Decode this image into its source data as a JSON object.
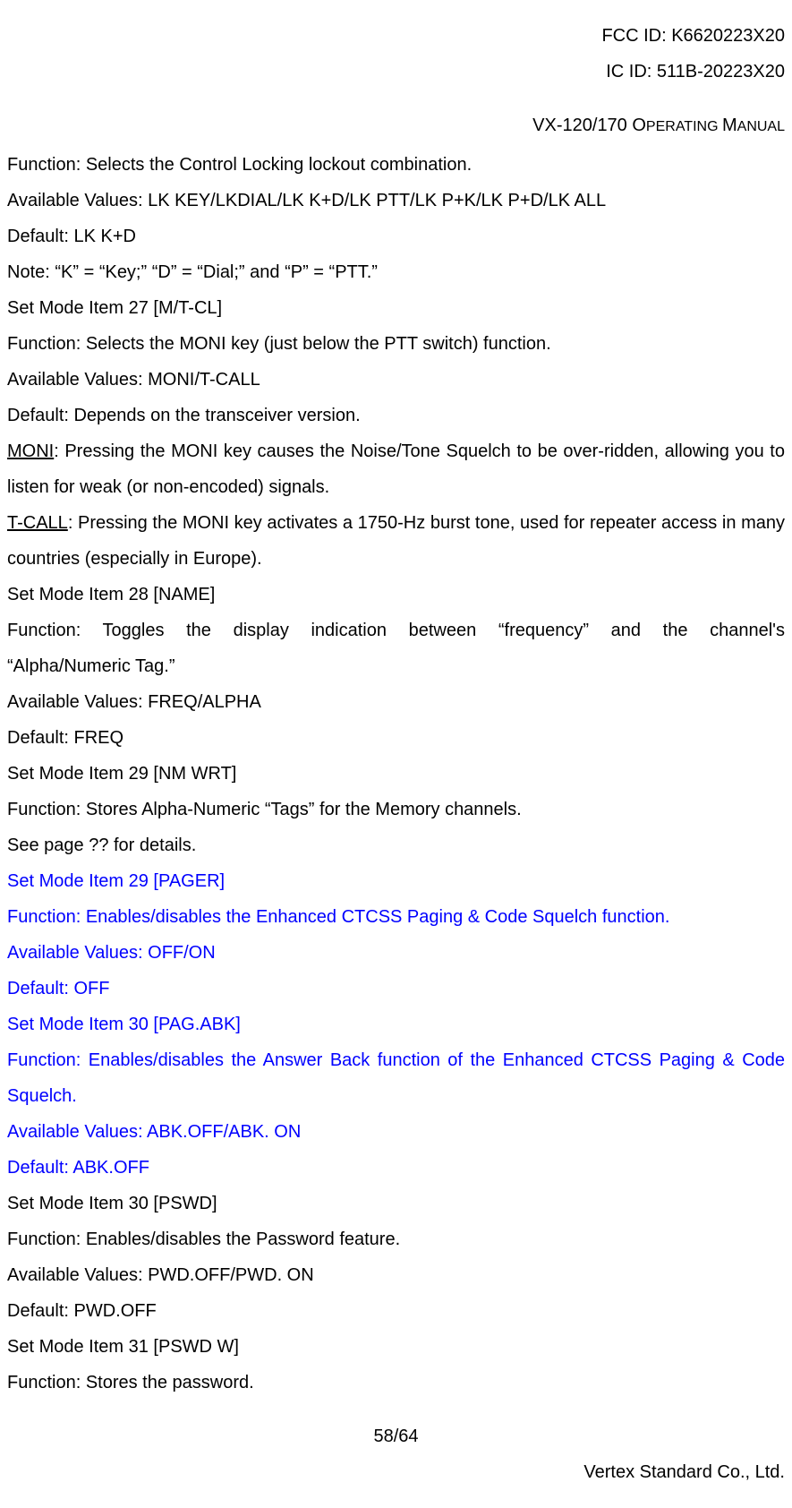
{
  "header": {
    "fcc_id": "FCC ID: K6620223X20",
    "ic_id": "IC ID: 511B-20223X20"
  },
  "doc_title_prefix": "VX-120/170 O",
  "doc_title_suffix": "PERATING ",
  "doc_title_prefix2": "M",
  "doc_title_suffix2": "ANUAL",
  "lines": {
    "l1": "Function: Selects the Control Locking lockout combination.",
    "l2": "Available Values: LK KEY/LKDIAL/LK K+D/LK PTT/LK P+K/LK P+D/LK ALL",
    "l3": "Default: LK K+D",
    "l4": "Note: “K” = “Key;” “D” = “Dial;” and “P” = “PTT.”",
    "l5": "Set Mode Item 27 [M/T-CL]",
    "l6": "Function: Selects the MONI key (just below the PTT switch) function.",
    "l7": "Available Values: MONI/T-CALL",
    "l8": "Default: Depends on the transceiver version.",
    "l9a": "MONI",
    "l9b": ": Pressing the MONI key causes the Noise/Tone Squelch to be over-ridden, allowing you to listen for weak (or non-encoded) signals.",
    "l10a": "T-CALL",
    "l10b": ": Pressing the MONI key activates a 1750-Hz burst tone, used for repeater access in many countries (especially in Europe).",
    "l11": "Set Mode Item 28 [NAME]",
    "l12a": "Function: Toggles the display indication between “frequency” and the channel's",
    "l12b": "“Alpha/Numeric Tag.”",
    "l13": "Available Values: FREQ/ALPHA",
    "l14": "Default: FREQ",
    "l15": "Set Mode Item 29 [NM WRT]",
    "l16": "Function: Stores Alpha-Numeric “Tags” for the Memory channels.",
    "l17": "See page ?? for details.",
    "l18": "Set Mode Item 29 [PAGER]",
    "l19": "Function: Enables/disables the Enhanced CTCSS Paging & Code Squelch function.",
    "l20": "Available Values: OFF/ON",
    "l21": "Default: OFF",
    "l22": "Set Mode Item 30 [PAG.ABK]",
    "l23": "Function: Enables/disables the Answer Back function of the Enhanced CTCSS Paging & Code Squelch.",
    "l24": "Available Values: ABK.OFF/ABK. ON",
    "l25": "Default: ABK.OFF",
    "l26": "Set Mode Item 30 [PSWD]",
    "l27": "Function: Enables/disables the Password feature.",
    "l28": "Available Values: PWD.OFF/PWD. ON",
    "l29": "Default: PWD.OFF",
    "l30": "Set Mode Item 31 [PSWD W]",
    "l31": "Function: Stores the password."
  },
  "footer": {
    "page": "58/64",
    "company": "Vertex Standard Co., Ltd."
  }
}
